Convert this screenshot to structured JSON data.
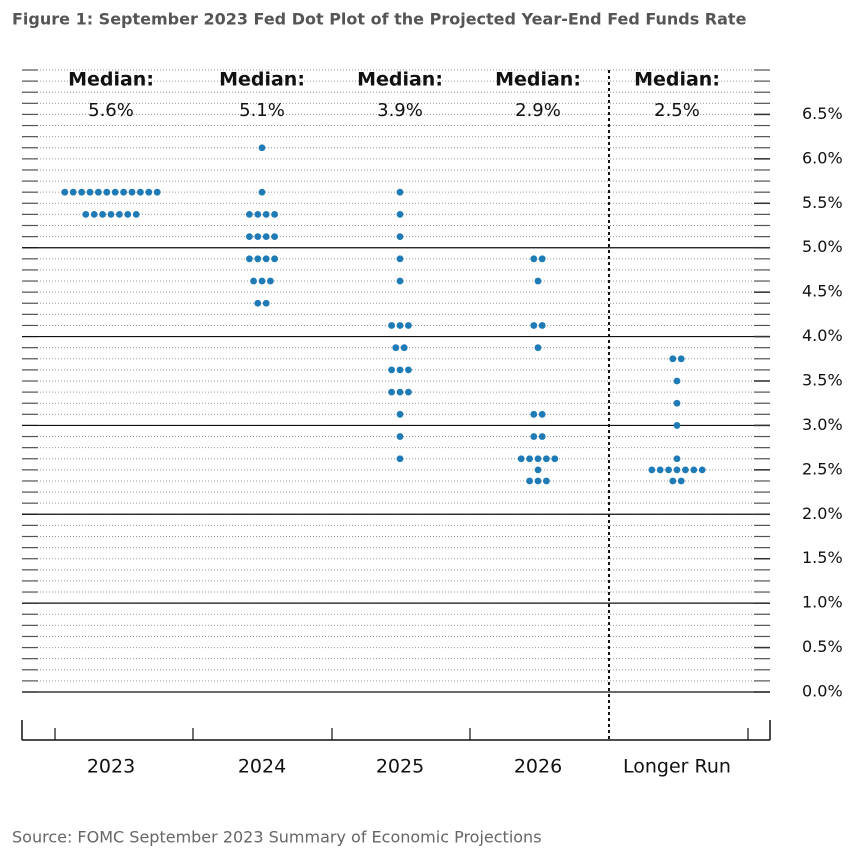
{
  "chart_data": {
    "type": "dot",
    "title": "Figure 1: September 2023 Fed Dot Plot of the Projected Year-End Fed Funds Rate",
    "source": "Source: FOMC September 2023 Summary of Economic Projections",
    "categories": [
      "2023",
      "2024",
      "2025",
      "2026",
      "Longer Run"
    ],
    "median_label": "Median:",
    "medians": [
      5.6,
      5.1,
      3.9,
      2.9,
      2.5
    ],
    "value_labels": [
      "5.6%",
      "5.1%",
      "3.9%",
      "2.9%",
      "2.5%"
    ],
    "dots": [
      [
        5.625,
        5.625,
        5.625,
        5.625,
        5.625,
        5.625,
        5.625,
        5.625,
        5.625,
        5.625,
        5.625,
        5.625,
        5.375,
        5.375,
        5.375,
        5.375,
        5.375,
        5.375,
        5.375
      ],
      [
        6.125,
        5.625,
        5.375,
        5.375,
        5.375,
        5.375,
        5.125,
        5.125,
        5.125,
        5.125,
        4.875,
        4.875,
        4.875,
        4.875,
        4.625,
        4.625,
        4.625,
        4.375,
        4.375
      ],
      [
        5.625,
        5.375,
        5.125,
        4.875,
        4.625,
        4.125,
        4.125,
        4.125,
        3.875,
        3.875,
        3.625,
        3.625,
        3.625,
        3.375,
        3.375,
        3.375,
        3.125,
        2.875,
        2.625
      ],
      [
        4.875,
        4.875,
        4.625,
        4.125,
        4.125,
        3.875,
        3.125,
        3.125,
        2.875,
        2.875,
        2.625,
        2.625,
        2.625,
        2.625,
        2.625,
        2.5,
        2.375,
        2.375,
        2.375
      ],
      [
        3.75,
        3.75,
        3.5,
        3.25,
        3.0,
        2.625,
        2.5,
        2.5,
        2.5,
        2.5,
        2.5,
        2.5,
        2.5,
        2.375,
        2.375
      ]
    ],
    "color": "#1f7bb6",
    "ylim": [
      0,
      7
    ],
    "yticks": [
      {
        "value": 0,
        "label": "0.0%"
      },
      {
        "value": 0.5,
        "label": "0.5%"
      },
      {
        "value": 1,
        "label": "1.0%"
      },
      {
        "value": 1.5,
        "label": "1.5%"
      },
      {
        "value": 2,
        "label": "2.0%"
      },
      {
        "value": 2.5,
        "label": "2.5%"
      },
      {
        "value": 3,
        "label": "3.0%"
      },
      {
        "value": 3.5,
        "label": "3.5%"
      },
      {
        "value": 4,
        "label": "4.0%"
      },
      {
        "value": 4.5,
        "label": "4.5%"
      },
      {
        "value": 5,
        "label": "5.0%"
      },
      {
        "value": 5.5,
        "label": "5.5%"
      },
      {
        "value": 6,
        "label": "6.0%"
      },
      {
        "value": 6.5,
        "label": "6.5%"
      }
    ],
    "minor_grid_step": 0.125,
    "major_lines": [
      0,
      1,
      2,
      3,
      4,
      5
    ]
  }
}
